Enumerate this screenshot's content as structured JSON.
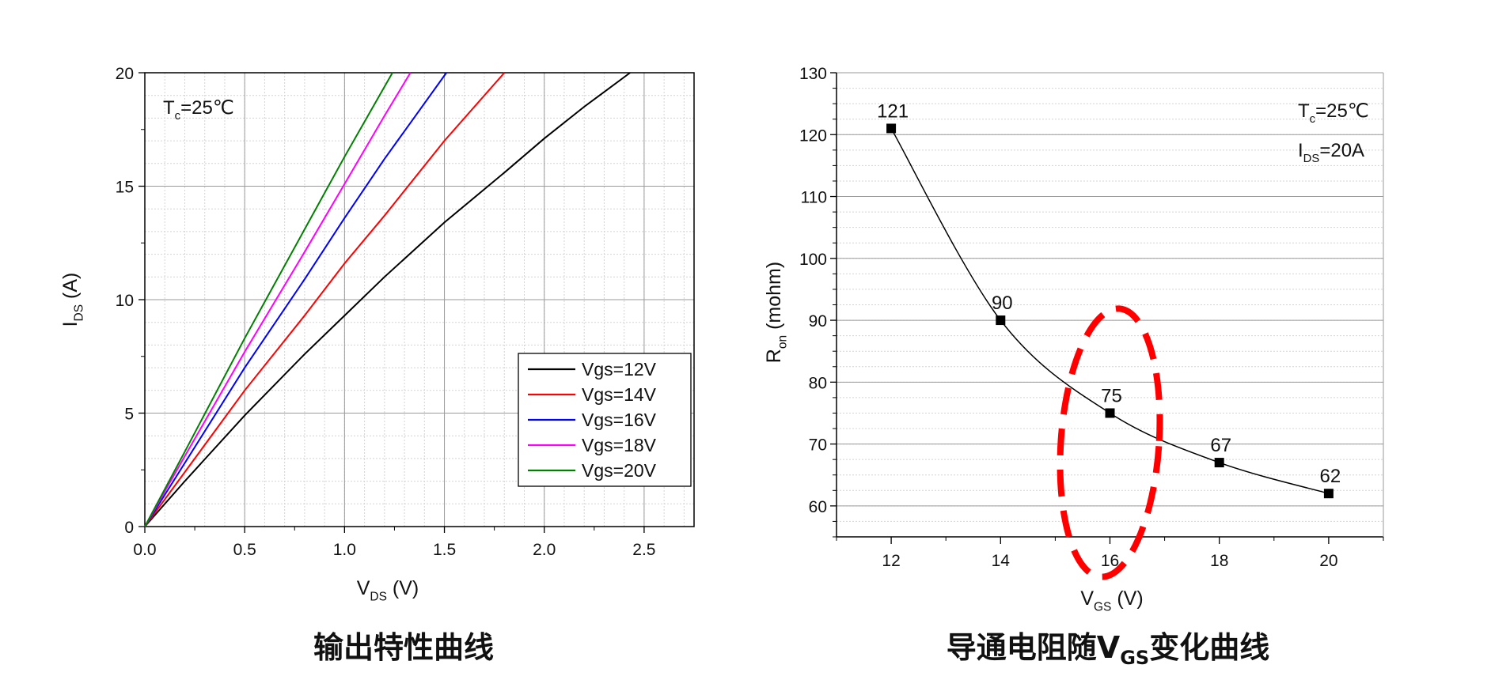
{
  "chart_data": [
    {
      "type": "line",
      "caption": "输出特性曲线",
      "annotation": {
        "prefix": "T",
        "sub": "c",
        "suffix": "=25℃"
      },
      "xlabel": {
        "main": "V",
        "sub": "DS",
        "unit": " (V)"
      },
      "ylabel": {
        "main": "I",
        "sub": "DS",
        "unit": " (A)"
      },
      "xlim": [
        0,
        2.75
      ],
      "ylim": [
        0,
        20
      ],
      "xticks": [
        0.0,
        0.5,
        1.0,
        1.5,
        2.0,
        2.5
      ],
      "xtick_labels": [
        "0.0",
        "0.5",
        "1.0",
        "1.5",
        "2.0",
        "2.5"
      ],
      "yticks": [
        0,
        5,
        10,
        15,
        20
      ],
      "ytick_labels": [
        "0",
        "5",
        "10",
        "15",
        "20"
      ],
      "grid": true,
      "legend": "bottom-right",
      "series": [
        {
          "name": "Vgs=12V",
          "color": "#000000",
          "x": [
            0,
            0.2,
            0.5,
            0.8,
            1.0,
            1.2,
            1.5,
            1.8,
            2.0,
            2.2,
            2.43
          ],
          "y": [
            0,
            2.0,
            4.9,
            7.6,
            9.3,
            11.0,
            13.4,
            15.6,
            17.1,
            18.5,
            20.0
          ]
        },
        {
          "name": "Vgs=14V",
          "color": "#ff0000",
          "x": [
            0,
            0.2,
            0.5,
            0.8,
            1.0,
            1.2,
            1.5,
            1.8
          ],
          "y": [
            0,
            2.4,
            6.0,
            9.3,
            11.6,
            13.7,
            17.0,
            20.0
          ]
        },
        {
          "name": "Vgs=16V",
          "color": "#0000ff",
          "x": [
            0,
            0.2,
            0.5,
            0.8,
            1.0,
            1.2,
            1.51
          ],
          "y": [
            0,
            2.8,
            7.0,
            10.9,
            13.6,
            16.2,
            20.0
          ]
        },
        {
          "name": "Vgs=18V",
          "color": "#ff00ff",
          "x": [
            0,
            0.2,
            0.5,
            0.8,
            1.0,
            1.2,
            1.33
          ],
          "y": [
            0,
            3.1,
            7.7,
            12.1,
            15.1,
            18.1,
            20.0
          ]
        },
        {
          "name": "Vgs=20V",
          "color": "#008000",
          "x": [
            0,
            0.2,
            0.5,
            0.8,
            1.0,
            1.24
          ],
          "y": [
            0,
            3.3,
            8.3,
            13.1,
            16.3,
            20.0
          ]
        }
      ]
    },
    {
      "type": "line",
      "caption": {
        "main": "导通电阻随V",
        "sub": "GS",
        "tail": "变化曲线"
      },
      "annotation": {
        "prefix": "T",
        "sub": "c",
        "suffix": "=25℃"
      },
      "annotation2": {
        "prefix": "I",
        "sub": "DS",
        "suffix": "=20A"
      },
      "xlabel": {
        "main": "V",
        "sub": "GS",
        "unit": " (V)"
      },
      "ylabel": {
        "main": "R",
        "sub": "on",
        "unit": "  (mohm)"
      },
      "xlim": [
        11,
        21
      ],
      "ylim": [
        55,
        130
      ],
      "xticks": [
        12,
        14,
        16,
        18,
        20
      ],
      "xtick_labels": [
        "12",
        "14",
        "16",
        "18",
        "20"
      ],
      "yticks": [
        60,
        70,
        80,
        90,
        100,
        110,
        120,
        130
      ],
      "ytick_labels": [
        "60",
        "70",
        "80",
        "90",
        "100",
        "110",
        "120",
        "130"
      ],
      "grid": true,
      "highlight": {
        "shape": "dashed-ellipse",
        "color": "#ff0000",
        "around_x": 16
      },
      "series": [
        {
          "color": "#000000",
          "marker": "square",
          "x": [
            12,
            14,
            16,
            18,
            20
          ],
          "y": [
            121,
            90,
            75,
            67,
            62
          ],
          "labels": [
            "121",
            "90",
            "75",
            "67",
            "62"
          ]
        }
      ]
    }
  ]
}
